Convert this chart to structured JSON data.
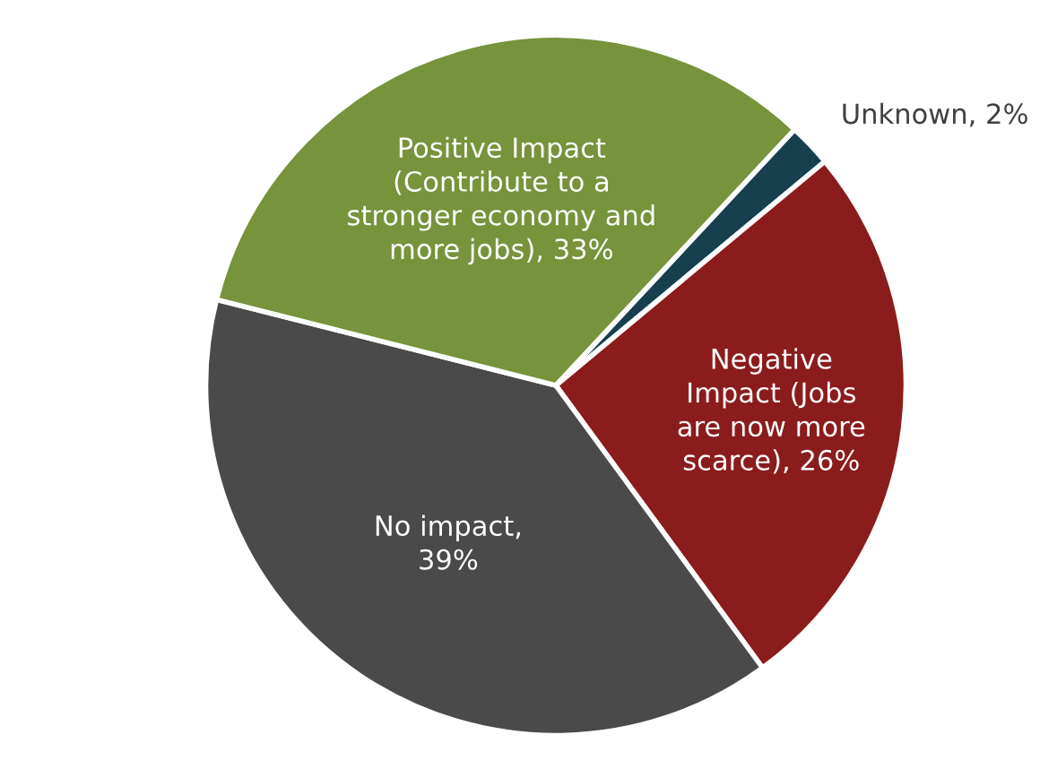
{
  "chart_data": {
    "type": "pie",
    "categories": [
      "Unknown, 2%",
      "Negative\nImpact (Jobs\nare now more\nscarce), 26%",
      "No impact,\n39%",
      "Positive Impact\n(Contribute to a\nstronger economy and\nmore jobs), 33%"
    ],
    "values": [
      2,
      26,
      39,
      33
    ],
    "colors": [
      "#17404f",
      "#8b1c1c",
      "#4a4a4a",
      "#77933c"
    ]
  }
}
